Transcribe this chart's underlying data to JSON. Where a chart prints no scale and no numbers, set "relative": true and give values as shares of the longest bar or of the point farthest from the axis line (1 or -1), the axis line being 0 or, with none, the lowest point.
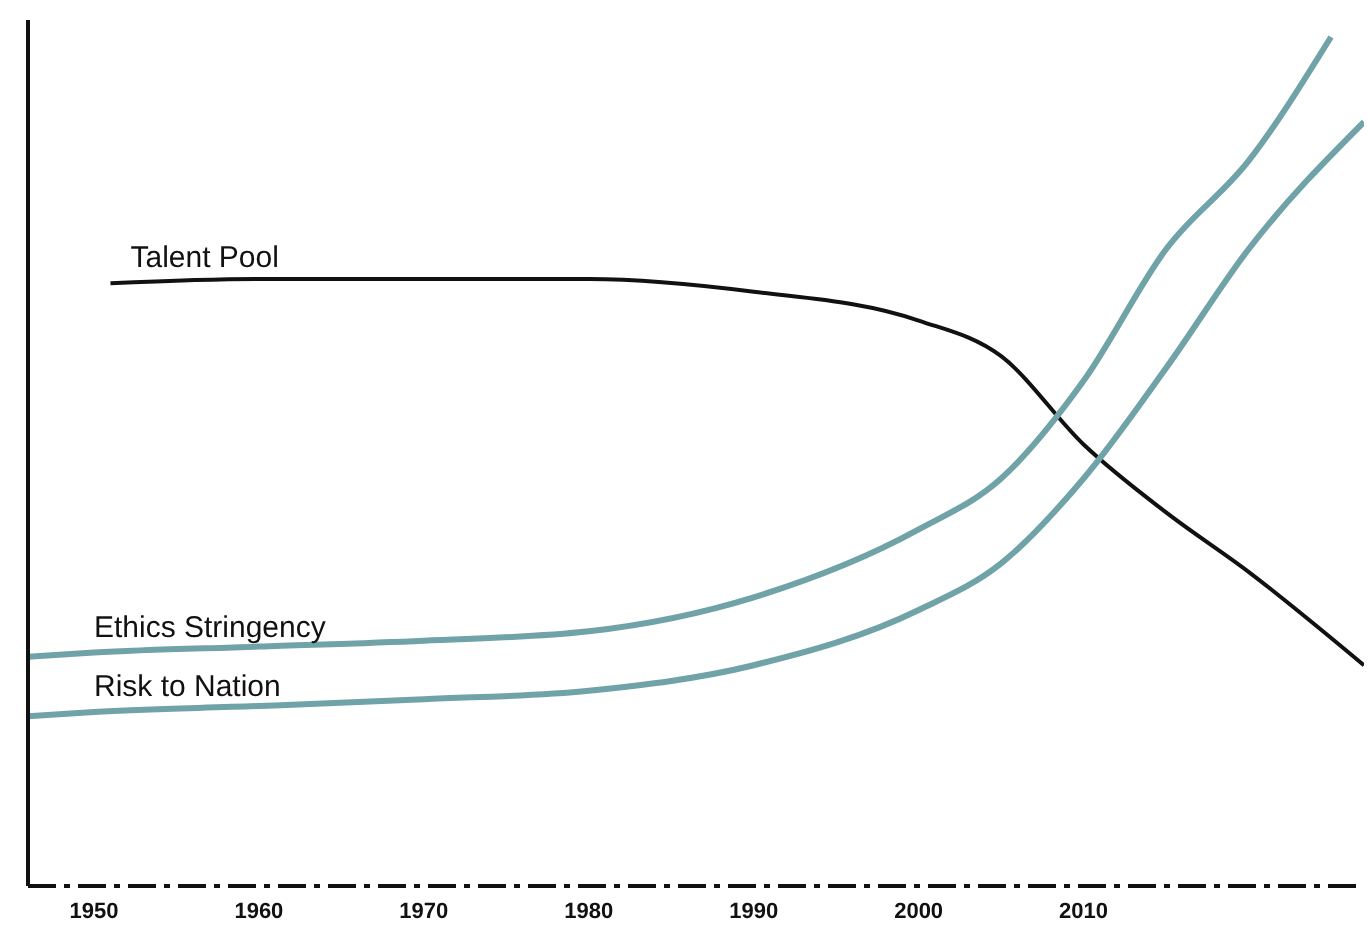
{
  "chart_data": {
    "type": "line",
    "relative": true,
    "marker": "none",
    "line_style": "solid",
    "xlim": [
      1946,
      2027
    ],
    "xticks": [
      1950,
      1960,
      1970,
      1980,
      1990,
      2000,
      2010
    ],
    "series": [
      {
        "name": "Talent Pool",
        "color": "#111111",
        "x": [
          1951,
          1960,
          1970,
          1980,
          1990,
          2000,
          2005,
          2010,
          2015,
          2020,
          2027
        ],
        "values": [
          0.71,
          0.715,
          0.715,
          0.715,
          0.7,
          0.666,
          0.624,
          0.52,
          0.44,
          0.37,
          0.26
        ]
      },
      {
        "name": "Ethics Stringency",
        "color": "#6fa3a8",
        "x": [
          1946,
          1950,
          1960,
          1970,
          1980,
          1990,
          2000,
          2005,
          2010,
          2015,
          2020,
          2025
        ],
        "values": [
          0.27,
          0.275,
          0.282,
          0.289,
          0.3,
          0.34,
          0.42,
          0.48,
          0.595,
          0.75,
          0.854,
          1
        ]
      },
      {
        "name": "Risk to Nation",
        "color": "#6fa3a8",
        "x": [
          1946,
          1950,
          1960,
          1970,
          1980,
          1990,
          2000,
          2005,
          2010,
          2015,
          2020,
          2027
        ],
        "values": [
          0.2,
          0.205,
          0.212,
          0.22,
          0.23,
          0.26,
          0.325,
          0.38,
          0.48,
          0.61,
          0.75,
          0.9
        ]
      }
    ]
  }
}
